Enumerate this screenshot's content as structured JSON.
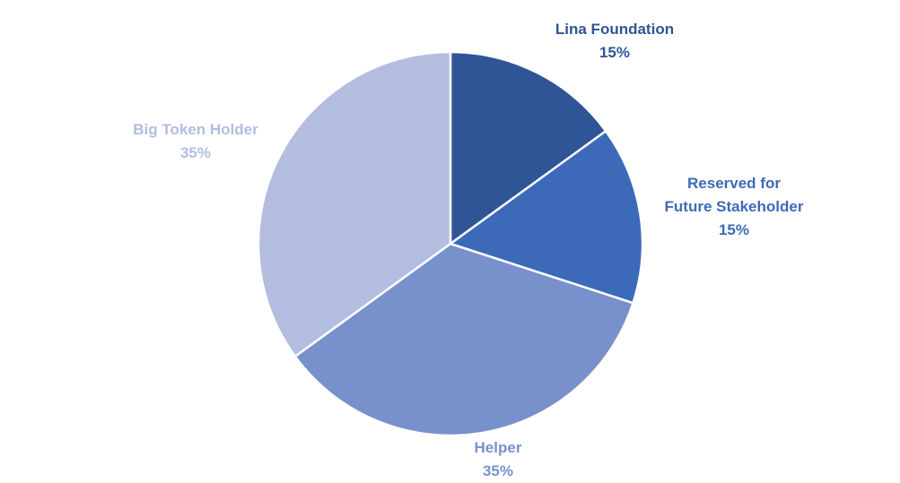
{
  "chart_data": {
    "type": "pie",
    "slices": [
      {
        "label_lines": [
          "Lina Foundation"
        ],
        "value": 15,
        "value_label": "15%",
        "color": "#2F5597",
        "label_color": "#2F5597"
      },
      {
        "label_lines": [
          "Reserved for",
          "Future Stakeholder"
        ],
        "value": 15,
        "value_label": "15%",
        "color": "#3C6AB9",
        "label_color": "#3C6AB9"
      },
      {
        "label_lines": [
          "Helper"
        ],
        "value": 35,
        "value_label": "35%",
        "color": "#7891CC",
        "label_color": "#7891CC"
      },
      {
        "label_lines": [
          "Big Token Holder"
        ],
        "value": 35,
        "value_label": "35%",
        "color": "#B2BDE0",
        "label_color": "#B2BDE0"
      }
    ],
    "start_angle_deg": 0,
    "direction": "clockwise",
    "legend": "none"
  }
}
